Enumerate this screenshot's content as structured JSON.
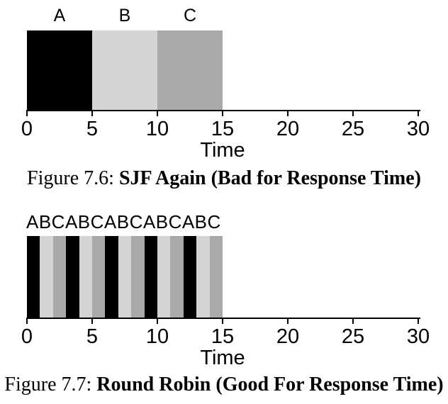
{
  "colors": {
    "A": "#000000",
    "B": "#d4d4d4",
    "C": "#a9a9a9",
    "axis": "#000000",
    "text": "#000000",
    "background": "#ffffff"
  },
  "figures": [
    {
      "id": "figure-7-6",
      "top_labels": [
        {
          "text": "A",
          "x": 2.5,
          "align": "center"
        },
        {
          "text": "B",
          "x": 7.5,
          "align": "center"
        },
        {
          "text": "C",
          "x": 12.5,
          "align": "center"
        }
      ],
      "caption": {
        "prefix": "Figure 7.6:",
        "title": "SJF Again (Bad for Response Time)"
      }
    },
    {
      "id": "figure-7-7",
      "top_labels": [
        {
          "text": "ABCABCABCABCABC",
          "x": 0,
          "align": "left"
        }
      ],
      "caption": {
        "prefix": "Figure 7.7:",
        "title": "Round Robin (Good For Response Time)"
      }
    }
  ],
  "chart_data": [
    {
      "type": "bar",
      "subtype": "schedule-timeline",
      "title": "",
      "xlabel": "Time",
      "xlim": [
        0,
        30
      ],
      "xticks": [
        0,
        5,
        10,
        15,
        20,
        25,
        30
      ],
      "grid": false,
      "legend": false,
      "segments": [
        {
          "job": "A",
          "start": 0,
          "end": 5
        },
        {
          "job": "B",
          "start": 5,
          "end": 10
        },
        {
          "job": "C",
          "start": 10,
          "end": 15
        }
      ]
    },
    {
      "type": "bar",
      "subtype": "schedule-timeline",
      "title": "",
      "xlabel": "Time",
      "xlim": [
        0,
        30
      ],
      "xticks": [
        0,
        5,
        10,
        15,
        20,
        25,
        30
      ],
      "grid": false,
      "legend": false,
      "segments": [
        {
          "job": "A",
          "start": 0,
          "end": 1
        },
        {
          "job": "B",
          "start": 1,
          "end": 2
        },
        {
          "job": "C",
          "start": 2,
          "end": 3
        },
        {
          "job": "A",
          "start": 3,
          "end": 4
        },
        {
          "job": "B",
          "start": 4,
          "end": 5
        },
        {
          "job": "C",
          "start": 5,
          "end": 6
        },
        {
          "job": "A",
          "start": 6,
          "end": 7
        },
        {
          "job": "B",
          "start": 7,
          "end": 8
        },
        {
          "job": "C",
          "start": 8,
          "end": 9
        },
        {
          "job": "A",
          "start": 9,
          "end": 10
        },
        {
          "job": "B",
          "start": 10,
          "end": 11
        },
        {
          "job": "C",
          "start": 11,
          "end": 12
        },
        {
          "job": "A",
          "start": 12,
          "end": 13
        },
        {
          "job": "B",
          "start": 13,
          "end": 14
        },
        {
          "job": "C",
          "start": 14,
          "end": 15
        }
      ]
    }
  ]
}
